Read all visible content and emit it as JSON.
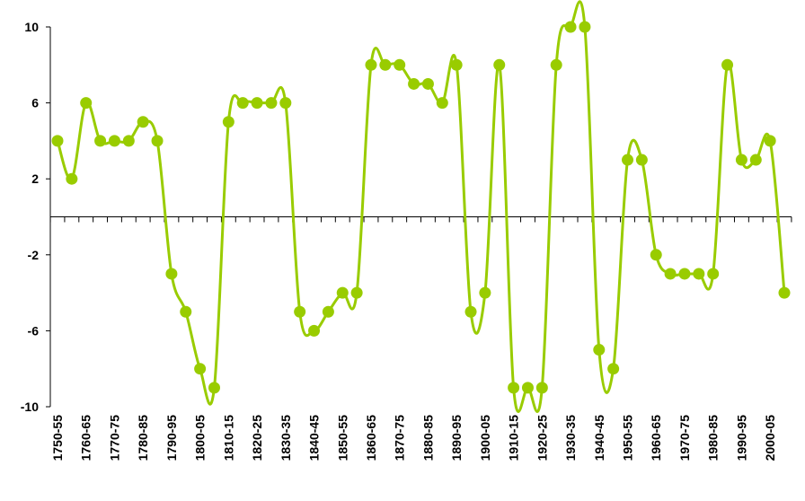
{
  "chart_data": {
    "type": "line",
    "categories": [
      "1750-55",
      null,
      "1760-65",
      null,
      "1770-75",
      null,
      "1780-85",
      null,
      "1790-95",
      null,
      "1800-05",
      null,
      "1810-15",
      null,
      "1820-25",
      null,
      "1830-35",
      null,
      "1840-45",
      null,
      "1850-55",
      null,
      "1860-65",
      null,
      "1870-75",
      null,
      "1880-85",
      null,
      "1890-95",
      null,
      "1900-05",
      null,
      "1910-15",
      null,
      "1920-25",
      null,
      "1930-35",
      null,
      "1940-45",
      null,
      "1950-55",
      null,
      "1960-65",
      null,
      "1970-75",
      null,
      "1980-85",
      null,
      "1990-95",
      null,
      "2000-05",
      null
    ],
    "values": [
      4,
      2,
      6,
      4,
      4,
      4,
      5,
      4,
      -3,
      -5,
      -8,
      -9,
      5,
      6,
      6,
      6,
      6,
      -5,
      -6,
      -5,
      -4,
      -4,
      8,
      8,
      8,
      7,
      7,
      6,
      8,
      -5,
      -4,
      8,
      -9,
      -9,
      -9,
      8,
      10,
      10,
      -7,
      -8,
      3,
      3,
      -2,
      -3,
      -3,
      -3,
      -3,
      8,
      3,
      3,
      4,
      -4
    ],
    "color": "#99cc00",
    "ylim": [
      -10,
      10
    ],
    "yticks": [
      10,
      6,
      2,
      -2,
      -6,
      -10
    ]
  }
}
